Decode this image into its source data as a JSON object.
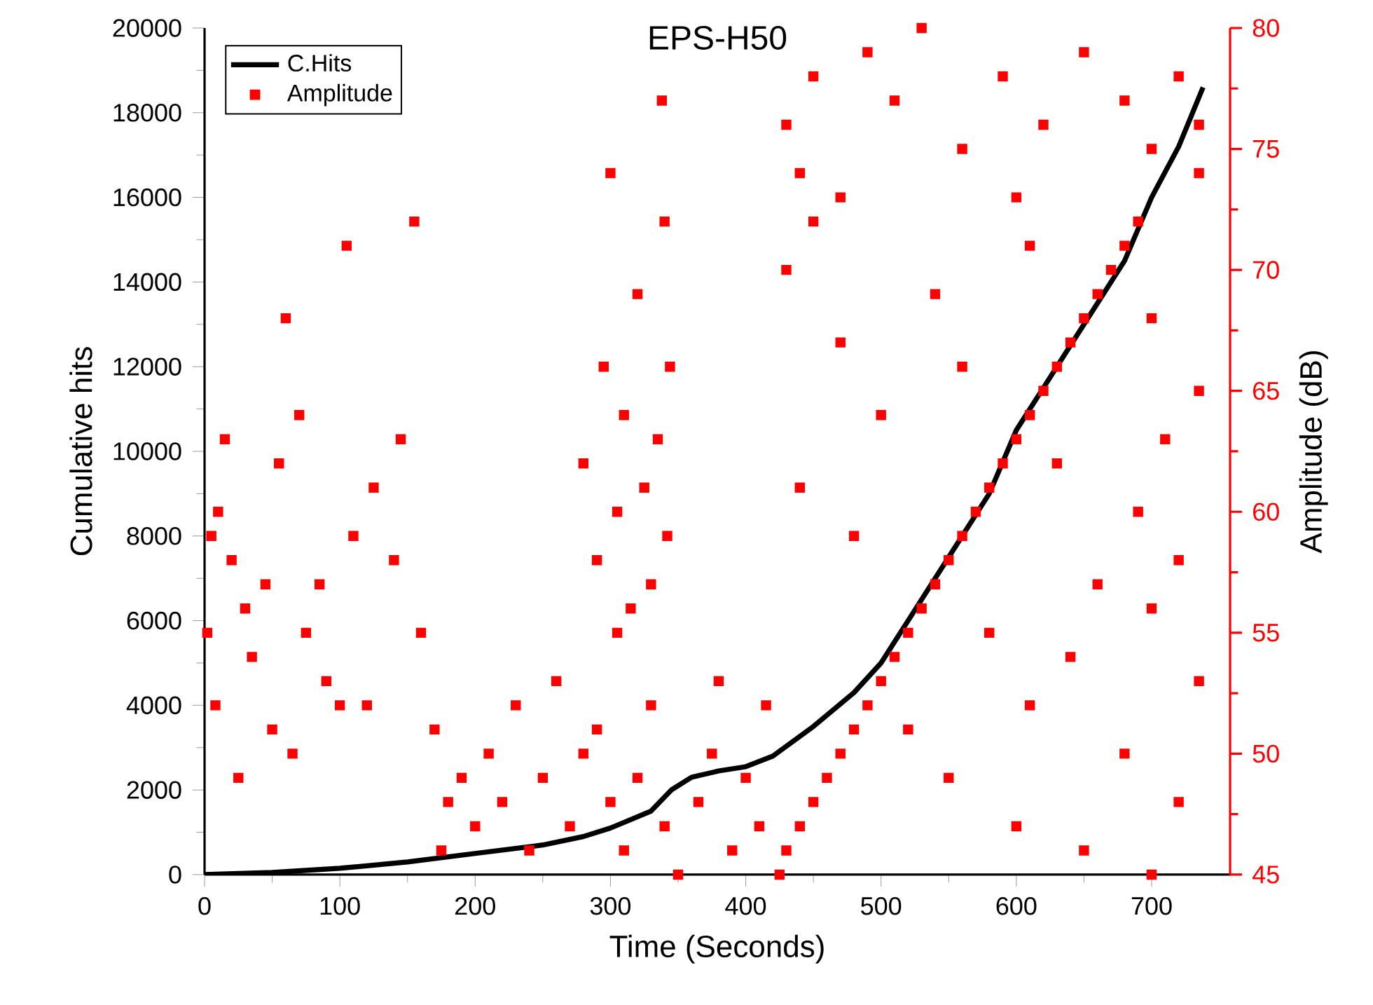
{
  "chart_data": {
    "type": "line",
    "title": "EPS-H50",
    "xlabel": "Time (Seconds)",
    "ylabel": "Cumulative hits",
    "y2label": "Amplitude (dB)",
    "xlim": [
      0,
      758
    ],
    "xticks": [
      0,
      100,
      200,
      300,
      400,
      500,
      600,
      700
    ],
    "ylim": [
      0,
      20000
    ],
    "yticks": [
      0,
      2000,
      4000,
      6000,
      8000,
      10000,
      12000,
      14000,
      16000,
      18000,
      20000
    ],
    "y2lim": [
      45,
      80
    ],
    "y2ticks": [
      45,
      50,
      55,
      60,
      65,
      70,
      75,
      80
    ],
    "legend": "top left",
    "grid": false,
    "series": [
      {
        "name": "C.Hits",
        "color": "#000000",
        "marker": "none",
        "line_style": "solid",
        "x": [
          0,
          50,
          100,
          150,
          200,
          250,
          280,
          300,
          330,
          345,
          360,
          380,
          400,
          420,
          450,
          480,
          500,
          520,
          550,
          580,
          600,
          620,
          650,
          680,
          700,
          720,
          738
        ],
        "values": [
          0,
          50,
          150,
          300,
          500,
          700,
          900,
          1100,
          1500,
          2000,
          2300,
          2450,
          2550,
          2800,
          3500,
          4300,
          5000,
          6000,
          7500,
          9000,
          10500,
          11500,
          13000,
          14500,
          16000,
          17200,
          18600
        ]
      },
      {
        "name": "Amplitude",
        "type": "scatter",
        "axis": "y2",
        "color": "#ff0000",
        "marker": "square",
        "x": [
          2,
          5,
          8,
          10,
          15,
          20,
          25,
          30,
          35,
          45,
          50,
          55,
          60,
          65,
          70,
          75,
          85,
          90,
          100,
          105,
          110,
          120,
          125,
          140,
          145,
          155,
          160,
          170,
          175,
          180,
          190,
          200,
          210,
          220,
          230,
          240,
          250,
          260,
          270,
          280,
          290,
          300,
          305,
          310,
          320,
          330,
          340,
          350,
          365,
          375,
          380,
          390,
          400,
          410,
          415,
          280,
          290,
          295,
          300,
          305,
          310,
          315,
          320,
          325,
          330,
          335,
          338,
          340,
          342,
          344,
          425,
          700,
          430,
          650,
          440,
          600,
          450,
          720,
          460,
          550,
          470,
          680,
          480,
          520,
          490,
          610,
          500,
          735,
          510,
          640,
          520,
          580,
          530,
          700,
          540,
          660,
          550,
          720,
          560,
          480,
          570,
          690,
          580,
          440,
          590,
          630,
          600,
          710,
          610,
          500,
          620,
          735,
          630,
          560,
          640,
          470,
          650,
          700,
          660,
          540,
          670,
          430,
          680,
          610,
          690,
          450,
          430,
          440,
          450,
          470,
          490,
          510,
          530,
          560,
          590,
          600,
          620,
          650,
          680,
          700,
          720,
          735,
          735
        ],
        "values": [
          55,
          59,
          52,
          60,
          63,
          58,
          49,
          56,
          54,
          57,
          51,
          62,
          68,
          50,
          64,
          55,
          57,
          53,
          52,
          71,
          59,
          52,
          61,
          58,
          63,
          72,
          55,
          51,
          46,
          48,
          49,
          47,
          50,
          48,
          52,
          46,
          49,
          53,
          47,
          50,
          51,
          48,
          55,
          46,
          49,
          52,
          47,
          45,
          48,
          50,
          53,
          46,
          49,
          47,
          52,
          62,
          58,
          66,
          74,
          60,
          64,
          56,
          69,
          61,
          57,
          63,
          77,
          72,
          59,
          66,
          45,
          45,
          46,
          46,
          47,
          47,
          48,
          48,
          49,
          49,
          50,
          50,
          51,
          51,
          52,
          52,
          53,
          53,
          54,
          54,
          55,
          55,
          56,
          56,
          57,
          57,
          58,
          58,
          59,
          59,
          60,
          60,
          61,
          61,
          62,
          62,
          63,
          63,
          64,
          64,
          65,
          65,
          66,
          66,
          67,
          67,
          68,
          68,
          69,
          69,
          70,
          70,
          71,
          71,
          72,
          72,
          76,
          74,
          78,
          73,
          79,
          77,
          80,
          75,
          78,
          73,
          76,
          79,
          77,
          75,
          78,
          74,
          76
        ]
      }
    ]
  }
}
